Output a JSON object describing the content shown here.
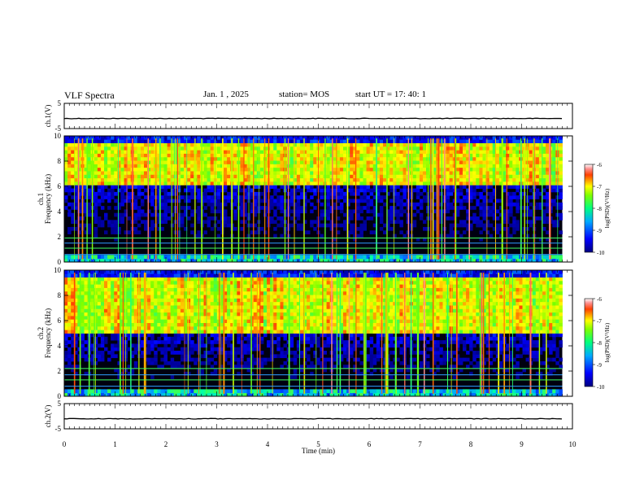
{
  "header": {
    "title": "VLF Spectra",
    "date": "Jan. 1 , 2025",
    "station": "station= MOS",
    "start": "start UT = 17: 40: 1"
  },
  "chart_data": [
    {
      "type": "line",
      "ylabel": "ch.1(V)",
      "y_ticks": [
        "5",
        "-5"
      ],
      "ylim": [
        -5,
        5
      ],
      "xlim": [
        0,
        10
      ],
      "note_values": "flat trace near -1 V across 0-9.8 min"
    },
    {
      "type": "heatmap",
      "ylabel_line1": "ch.1",
      "ylabel_line2": "Frequency (kHz)",
      "y_ticks": [
        "0",
        "2",
        "4",
        "6",
        "8",
        "10"
      ],
      "ylim": [
        0,
        10
      ],
      "xlim": [
        0,
        10
      ],
      "data_end_min": 9.8,
      "colorbar": {
        "label": "log(PSD)(V²/Hz)",
        "ticks": [
          "-6",
          "-7",
          "-8",
          "-9",
          "-10"
        ],
        "range": [
          -10,
          -6
        ]
      },
      "dominant_band_khz": [
        6,
        9.5
      ],
      "horizontal_lines_khz": [
        0.6,
        1.1,
        1.5,
        1.9
      ]
    },
    {
      "type": "heatmap",
      "ylabel_line1": "ch.2",
      "ylabel_line2": "Frequency (kHz)",
      "y_ticks": [
        "0",
        "2",
        "4",
        "6",
        "8",
        "10"
      ],
      "ylim": [
        0,
        10
      ],
      "xlim": [
        0,
        10
      ],
      "data_end_min": 9.8,
      "colorbar": {
        "label": "log(PSD)(V²/Hz)",
        "ticks": [
          "-6",
          "-7",
          "-8",
          "-9",
          "-10"
        ],
        "range": [
          -10,
          -6
        ]
      },
      "dominant_band_khz": [
        5,
        9.5
      ],
      "horizontal_lines_khz": [
        0.8,
        1.3,
        1.7,
        2.2
      ]
    },
    {
      "type": "line",
      "ylabel": "ch.2(V)",
      "y_ticks": [
        "5",
        "-5"
      ],
      "ylim": [
        -5,
        5
      ],
      "xlim": [
        0,
        10
      ],
      "note_values": "flat trace near -1 V across 0-9.8 min"
    }
  ],
  "x_axis": {
    "label": "Time (min)",
    "ticks": [
      "0",
      "1",
      "2",
      "3",
      "4",
      "5",
      "6",
      "7",
      "8",
      "9",
      "10"
    ]
  }
}
